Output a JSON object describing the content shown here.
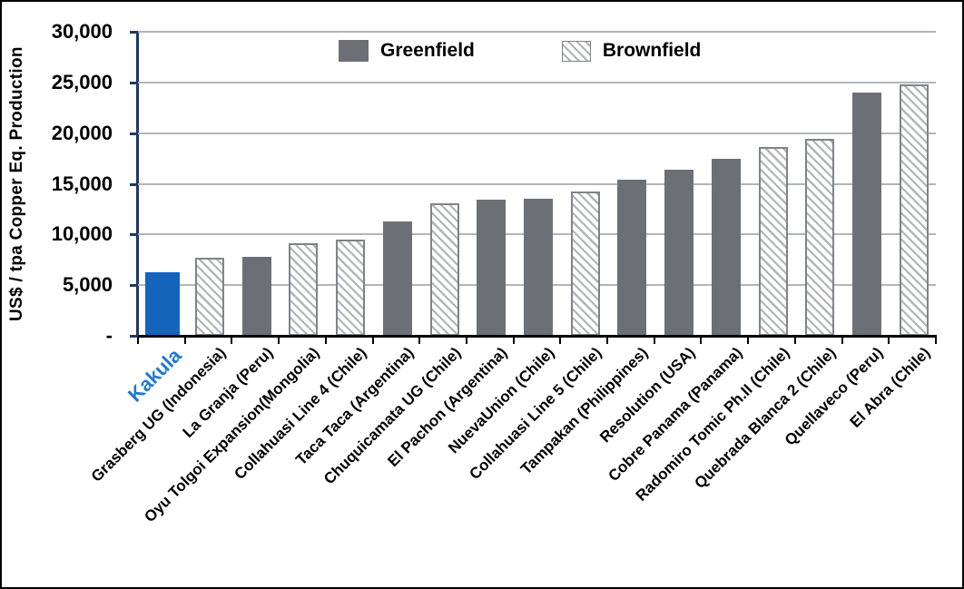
{
  "chart_data": {
    "type": "bar",
    "title": "",
    "xlabel": "",
    "ylabel": "US$ / tpa Copper Eq. Production",
    "ylim": [
      0,
      30000
    ],
    "ytick_step": 5000,
    "grid": "horizontal",
    "legend_position": "top-center",
    "yticks": [
      {
        "value": 30000,
        "label": "30,000"
      },
      {
        "value": 25000,
        "label": "25,000"
      },
      {
        "value": 20000,
        "label": "20,000"
      },
      {
        "value": 15000,
        "label": "15,000"
      },
      {
        "value": 10000,
        "label": "10,000"
      },
      {
        "value": 5000,
        "label": "5,000"
      },
      {
        "value": 0,
        "label": "-"
      }
    ],
    "legend": [
      {
        "label": "Greenfield",
        "swatch": "solid-gray",
        "type": "greenfield"
      },
      {
        "label": "Brownfield",
        "swatch": "diagonal-hatch",
        "type": "brownfield"
      }
    ],
    "bars": [
      {
        "category": "Kakula",
        "value": 6300,
        "type": "highlight"
      },
      {
        "category": "Grasberg UG (Indonesia)",
        "value": 7700,
        "type": "brownfield"
      },
      {
        "category": "La Granja (Peru)",
        "value": 7800,
        "type": "greenfield"
      },
      {
        "category": "Oyu Tolgoi Expansion(Mongolia)",
        "value": 9100,
        "type": "brownfield"
      },
      {
        "category": "Collahuasi Line 4 (Chile)",
        "value": 9500,
        "type": "brownfield"
      },
      {
        "category": "Taca Taca (Argentina)",
        "value": 11300,
        "type": "greenfield"
      },
      {
        "category": "Chuquicamata UG (Chile)",
        "value": 13100,
        "type": "brownfield"
      },
      {
        "category": "El Pachon (Argentina)",
        "value": 13400,
        "type": "greenfield"
      },
      {
        "category": "NuevaUnion (Chile)",
        "value": 13500,
        "type": "greenfield"
      },
      {
        "category": "Collahuasi Line 5 (Chile)",
        "value": 14200,
        "type": "brownfield"
      },
      {
        "category": "Tampakan (Philippines)",
        "value": 15400,
        "type": "greenfield"
      },
      {
        "category": "Resolution (USA)",
        "value": 16400,
        "type": "greenfield"
      },
      {
        "category": "Cobre Panama (Panama)",
        "value": 17500,
        "type": "greenfield"
      },
      {
        "category": "Radomiro Tomic Ph.II (Chile)",
        "value": 18600,
        "type": "brownfield"
      },
      {
        "category": "Quebrada Blanca 2 (Chile)",
        "value": 19400,
        "type": "brownfield"
      },
      {
        "category": "Quellaveco (Peru)",
        "value": 24000,
        "type": "greenfield"
      },
      {
        "category": "El Abra (Chile)",
        "value": 24800,
        "type": "brownfield"
      }
    ],
    "colors": {
      "highlight_bar": "#1464BB",
      "highlight_label": "#1E79D2",
      "greenfield_bar": "#6C7076",
      "brownfield_hatch_line": "#B2B4B6",
      "brownfield_border": "#7F8389",
      "gridline": "#B3B5B7",
      "y_axis": "#1F3864",
      "x_axis": "#000000"
    }
  }
}
